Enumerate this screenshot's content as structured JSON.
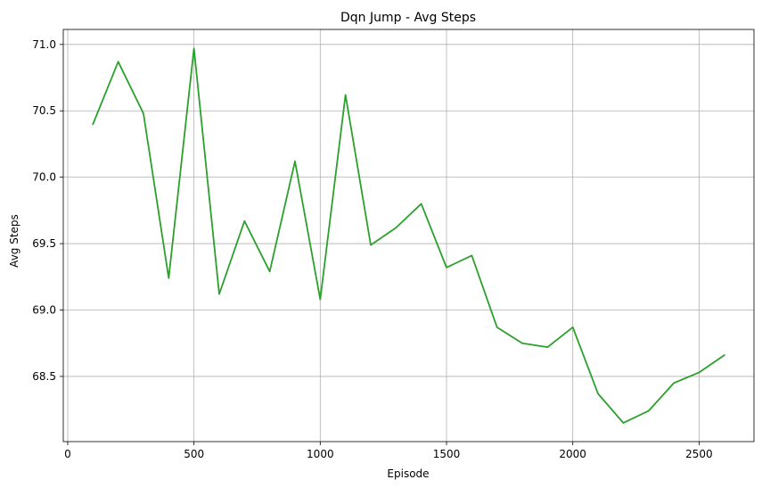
{
  "chart_data": {
    "type": "line",
    "title": "Dqn Jump - Avg Steps",
    "xlabel": "Episode",
    "ylabel": "Avg Steps",
    "xlim": [
      -17.5,
      2717.5
    ],
    "ylim": [
      68.009,
      71.113
    ],
    "xticks": [
      0,
      500,
      1000,
      1500,
      2000,
      2500
    ],
    "xtick_labels": [
      "0",
      "500",
      "1000",
      "1500",
      "2000",
      "2500"
    ],
    "yticks": [
      68.5,
      69.0,
      69.5,
      70.0,
      70.5,
      71.0
    ],
    "ytick_labels": [
      "68.5",
      "69.0",
      "69.5",
      "70.0",
      "70.5",
      "71.0"
    ],
    "grid": true,
    "series": [
      {
        "color": "#2ca02c",
        "x": [
          100,
          200,
          300,
          400,
          500,
          600,
          700,
          800,
          900,
          1000,
          1100,
          1200,
          1300,
          1400,
          1500,
          1600,
          1700,
          1800,
          1900,
          2000,
          2100,
          2200,
          2300,
          2400,
          2500,
          2600
        ],
        "y": [
          70.4,
          70.87,
          70.48,
          69.24,
          70.97,
          69.12,
          69.67,
          69.29,
          70.12,
          69.08,
          70.62,
          69.49,
          69.62,
          69.8,
          69.32,
          69.41,
          68.87,
          68.75,
          68.72,
          68.87,
          68.37,
          68.15,
          68.24,
          68.45,
          68.53,
          68.66
        ]
      }
    ]
  }
}
